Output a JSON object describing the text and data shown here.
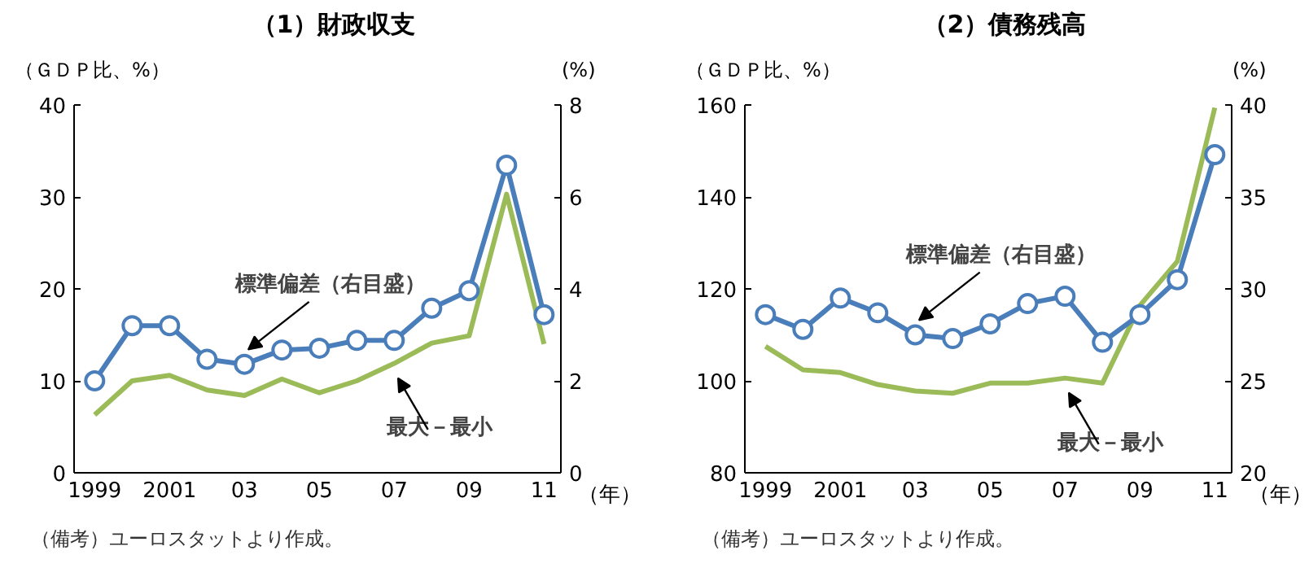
{
  "chart_data": [
    {
      "type": "line",
      "title": "（1）財政収支",
      "ylabel": "（ＧＤＰ比、%）",
      "y2label": "(%)",
      "xlabel": "（年）",
      "x": [
        1999,
        2000,
        2001,
        2002,
        2003,
        2004,
        2005,
        2006,
        2007,
        2008,
        2009,
        2010,
        2011
      ],
      "xlim": [
        1998.45,
        2011.45
      ],
      "xticks": [
        {
          "value": 1999,
          "label": "1999"
        },
        {
          "value": 2001,
          "label": "2001"
        },
        {
          "value": 2003,
          "label": "03"
        },
        {
          "value": 2005,
          "label": "05"
        },
        {
          "value": 2007,
          "label": "07"
        },
        {
          "value": 2009,
          "label": "09"
        },
        {
          "value": 2011,
          "label": "11"
        }
      ],
      "ylim": [
        0,
        40
      ],
      "yticks": [
        0,
        10,
        20,
        30,
        40
      ],
      "y2lim": [
        0,
        8
      ],
      "y2ticks": [
        0,
        2,
        4,
        6,
        8
      ],
      "series": [
        {
          "name": "最大－最小",
          "color": "#9bbb59",
          "marker": "none",
          "values": [
            6.3,
            10.0,
            10.6,
            9.0,
            8.4,
            10.2,
            8.7,
            10.0,
            11.9,
            14.1,
            14.9,
            30.3,
            14.0
          ]
        },
        {
          "name": "標準偏差（右目盛）",
          "color": "#4a7ebb",
          "marker": "circle",
          "axis": "y2",
          "values": [
            2.0,
            3.2,
            3.2,
            2.47,
            2.36,
            2.67,
            2.71,
            2.88,
            2.88,
            3.58,
            3.96,
            6.69,
            3.44
          ]
        }
      ],
      "annotations": [
        "（備考）ユーロスタットより作成。"
      ],
      "grid": false,
      "legend": false,
      "line_style": "solid"
    },
    {
      "type": "line",
      "title": "（2）債務残高",
      "ylabel": "（ＧＤＰ比、%）",
      "y2label": "(%)",
      "xlabel": "（年）",
      "x": [
        1999,
        2000,
        2001,
        2002,
        2003,
        2004,
        2005,
        2006,
        2007,
        2008,
        2009,
        2010,
        2011
      ],
      "xlim": [
        1998.45,
        2011.45
      ],
      "xticks": [
        {
          "value": 1999,
          "label": "1999"
        },
        {
          "value": 2001,
          "label": "2001"
        },
        {
          "value": 2003,
          "label": "03"
        },
        {
          "value": 2005,
          "label": "05"
        },
        {
          "value": 2007,
          "label": "07"
        },
        {
          "value": 2009,
          "label": "09"
        },
        {
          "value": 2011,
          "label": "11"
        }
      ],
      "ylim": [
        80,
        160
      ],
      "yticks": [
        80,
        100,
        120,
        140,
        160
      ],
      "y2lim": [
        20,
        40
      ],
      "y2ticks": [
        20,
        25,
        30,
        35,
        40
      ],
      "series": [
        {
          "name": "最大－最小",
          "color": "#9bbb59",
          "marker": "none",
          "values": [
            107.5,
            102.4,
            101.8,
            99.2,
            97.8,
            97.3,
            99.5,
            99.5,
            100.6,
            99.5,
            116.4,
            126.0,
            159.4
          ]
        },
        {
          "name": "標準偏差（右目盛）",
          "color": "#4a7ebb",
          "marker": "circle",
          "axis": "y2",
          "values": [
            28.6,
            27.8,
            29.5,
            28.7,
            27.5,
            27.3,
            28.1,
            29.2,
            29.6,
            27.1,
            28.6,
            30.5,
            37.3
          ]
        }
      ],
      "annotations": [
        "（備考）ユーロスタットより作成。"
      ],
      "grid": false,
      "legend": false,
      "line_style": "solid"
    }
  ]
}
